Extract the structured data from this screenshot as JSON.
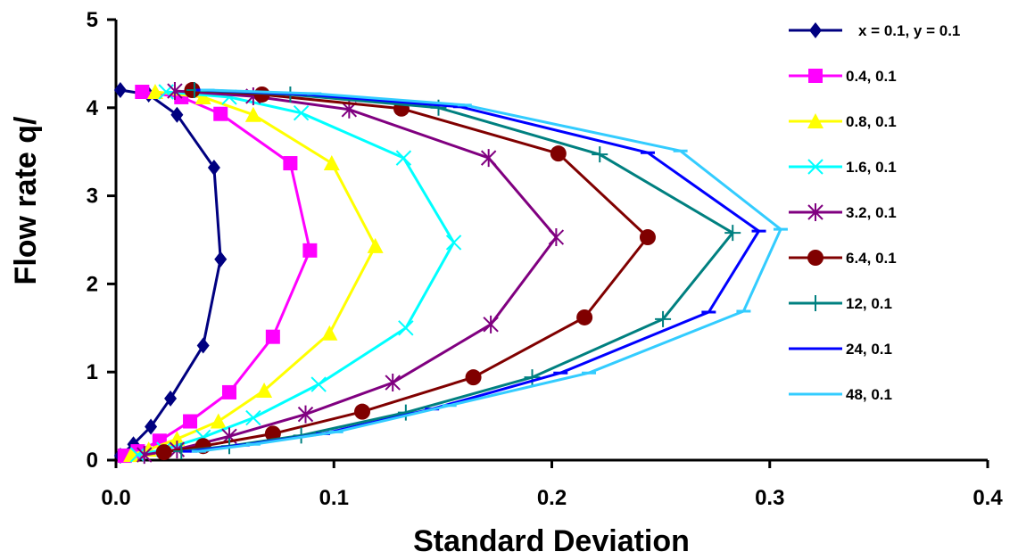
{
  "chart_data": {
    "type": "line",
    "title": "",
    "xlabel": "Standard Deviation",
    "ylabel": "Flow rate q/",
    "xlim": [
      0,
      0.4
    ],
    "ylim": [
      0,
      5
    ],
    "xticks": [
      "0.0",
      "0.1",
      "0.2",
      "0.3",
      "0.4"
    ],
    "yticks": [
      "0",
      "1",
      "2",
      "3",
      "4",
      "5"
    ],
    "grid": false,
    "legend_position": "right",
    "series": [
      {
        "name": "x = 0.1,   y = 0.1",
        "color": "#000080",
        "marker": "diamond",
        "x": [
          0.002,
          0.008,
          0.016,
          0.025,
          0.04,
          0.048,
          0.045,
          0.028,
          0.015,
          0.002
        ],
        "y": [
          0.05,
          0.18,
          0.38,
          0.7,
          1.3,
          2.28,
          3.32,
          3.92,
          4.15,
          4.2
        ]
      },
      {
        "name": "0.4, 0.1",
        "color": "#FF00FF",
        "marker": "square",
        "x": [
          0.004,
          0.01,
          0.02,
          0.034,
          0.052,
          0.072,
          0.089,
          0.08,
          0.048,
          0.03,
          0.012
        ],
        "y": [
          0.05,
          0.1,
          0.22,
          0.44,
          0.77,
          1.4,
          2.38,
          3.37,
          3.93,
          4.12,
          4.18
        ]
      },
      {
        "name": "0.8, 0.1",
        "color": "#FFFF00",
        "marker": "triangle",
        "x": [
          0.007,
          0.015,
          0.028,
          0.047,
          0.068,
          0.098,
          0.119,
          0.099,
          0.063,
          0.04,
          0.018
        ],
        "y": [
          0.06,
          0.12,
          0.24,
          0.44,
          0.79,
          1.44,
          2.43,
          3.37,
          3.92,
          4.12,
          4.18
        ]
      },
      {
        "name": "1.6, 0.1",
        "color": "#00FFFF",
        "marker": "x",
        "x": [
          0.01,
          0.022,
          0.04,
          0.063,
          0.093,
          0.133,
          0.155,
          0.132,
          0.085,
          0.052,
          0.023
        ],
        "y": [
          0.06,
          0.12,
          0.26,
          0.48,
          0.86,
          1.5,
          2.47,
          3.43,
          3.94,
          4.12,
          4.18
        ]
      },
      {
        "name": "3.2, 0.1",
        "color": "#800080",
        "marker": "star",
        "x": [
          0.013,
          0.028,
          0.052,
          0.087,
          0.127,
          0.172,
          0.202,
          0.171,
          0.107,
          0.063,
          0.027
        ],
        "y": [
          0.06,
          0.12,
          0.27,
          0.52,
          0.88,
          1.54,
          2.53,
          3.43,
          3.98,
          4.13,
          4.19
        ]
      },
      {
        "name": "6.4, 0.1",
        "color": "#800000",
        "marker": "circle",
        "x": [
          0.022,
          0.04,
          0.072,
          0.113,
          0.164,
          0.215,
          0.244,
          0.203,
          0.131,
          0.067,
          0.035
        ],
        "y": [
          0.09,
          0.16,
          0.3,
          0.55,
          0.94,
          1.62,
          2.53,
          3.48,
          3.99,
          4.15,
          4.2
        ]
      },
      {
        "name": "12, 0.1",
        "color": "#008080",
        "marker": "plus",
        "x": [
          0.03,
          0.052,
          0.085,
          0.133,
          0.191,
          0.251,
          0.283,
          0.222,
          0.148,
          0.08,
          0.036
        ],
        "y": [
          0.1,
          0.16,
          0.28,
          0.54,
          0.94,
          1.6,
          2.58,
          3.47,
          4.0,
          4.15,
          4.2
        ]
      },
      {
        "name": "24, 0.1",
        "color": "#0000FF",
        "marker": "dash",
        "x": [
          0.034,
          0.058,
          0.095,
          0.145,
          0.204,
          0.272,
          0.295,
          0.244,
          0.158,
          0.088,
          0.04
        ],
        "y": [
          0.1,
          0.17,
          0.3,
          0.58,
          0.99,
          1.68,
          2.6,
          3.49,
          4.01,
          4.15,
          4.2
        ]
      },
      {
        "name": "48, 0.1",
        "color": "#33CCFF",
        "marker": "dash",
        "x": [
          0.038,
          0.063,
          0.101,
          0.153,
          0.217,
          0.288,
          0.305,
          0.259,
          0.16,
          0.091,
          0.042
        ],
        "y": [
          0.1,
          0.18,
          0.32,
          0.62,
          0.99,
          1.69,
          2.62,
          3.51,
          4.03,
          4.16,
          4.2
        ]
      }
    ]
  }
}
